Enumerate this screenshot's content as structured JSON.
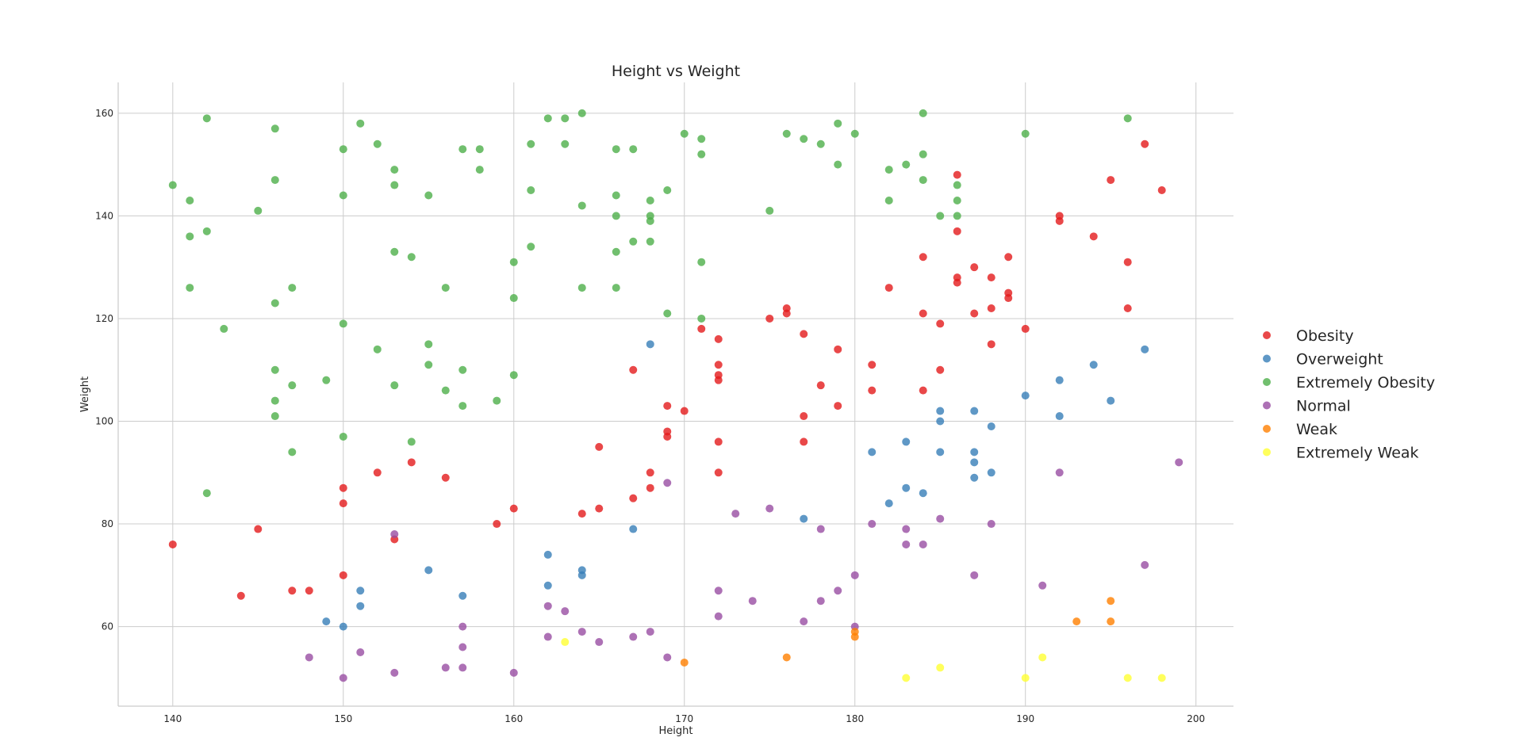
{
  "chart_data": {
    "type": "scatter",
    "title": "Height vs Weight",
    "xlabel": "Height",
    "ylabel": "Weight",
    "xlim": [
      136.8,
      202.2
    ],
    "ylim": [
      44.5,
      166
    ],
    "xticks": [
      140,
      150,
      160,
      170,
      180,
      190,
      200
    ],
    "yticks": [
      60,
      80,
      100,
      120,
      140,
      160
    ],
    "grid": true,
    "legend_position": "right",
    "series": [
      {
        "name": "Obesity",
        "color": "#e41a1c",
        "points": [
          [
            140,
            76
          ],
          [
            144,
            66
          ],
          [
            145,
            79
          ],
          [
            147,
            67
          ],
          [
            148,
            67
          ],
          [
            150,
            70
          ],
          [
            150,
            84
          ],
          [
            150,
            87
          ],
          [
            152,
            90
          ],
          [
            153,
            77
          ],
          [
            154,
            92
          ],
          [
            156,
            89
          ],
          [
            159,
            80
          ],
          [
            160,
            83
          ],
          [
            164,
            82
          ],
          [
            165,
            83
          ],
          [
            165,
            95
          ],
          [
            167,
            85
          ],
          [
            167,
            110
          ],
          [
            168,
            87
          ],
          [
            168,
            90
          ],
          [
            169,
            97
          ],
          [
            169,
            98
          ],
          [
            169,
            103
          ],
          [
            170,
            102
          ],
          [
            171,
            118
          ],
          [
            172,
            90
          ],
          [
            172,
            96
          ],
          [
            172,
            108
          ],
          [
            172,
            109
          ],
          [
            172,
            111
          ],
          [
            172,
            116
          ],
          [
            175,
            120
          ],
          [
            176,
            121
          ],
          [
            176,
            122
          ],
          [
            177,
            96
          ],
          [
            177,
            101
          ],
          [
            177,
            117
          ],
          [
            178,
            107
          ],
          [
            179,
            103
          ],
          [
            179,
            114
          ],
          [
            181,
            106
          ],
          [
            181,
            111
          ],
          [
            182,
            126
          ],
          [
            184,
            106
          ],
          [
            184,
            121
          ],
          [
            184,
            132
          ],
          [
            185,
            110
          ],
          [
            185,
            119
          ],
          [
            186,
            127
          ],
          [
            186,
            128
          ],
          [
            186,
            137
          ],
          [
            186,
            148
          ],
          [
            187,
            121
          ],
          [
            187,
            130
          ],
          [
            188,
            115
          ],
          [
            188,
            122
          ],
          [
            188,
            128
          ],
          [
            189,
            124
          ],
          [
            189,
            125
          ],
          [
            189,
            132
          ],
          [
            190,
            118
          ],
          [
            192,
            139
          ],
          [
            192,
            140
          ],
          [
            194,
            136
          ],
          [
            195,
            147
          ],
          [
            196,
            122
          ],
          [
            196,
            131
          ],
          [
            197,
            154
          ],
          [
            198,
            145
          ]
        ]
      },
      {
        "name": "Overweight",
        "color": "#377eb8",
        "points": [
          [
            149,
            61
          ],
          [
            150,
            60
          ],
          [
            151,
            64
          ],
          [
            151,
            67
          ],
          [
            155,
            71
          ],
          [
            157,
            66
          ],
          [
            162,
            68
          ],
          [
            162,
            74
          ],
          [
            164,
            70
          ],
          [
            164,
            71
          ],
          [
            167,
            79
          ],
          [
            168,
            115
          ],
          [
            177,
            81
          ],
          [
            181,
            94
          ],
          [
            182,
            84
          ],
          [
            183,
            87
          ],
          [
            183,
            96
          ],
          [
            184,
            86
          ],
          [
            185,
            94
          ],
          [
            185,
            100
          ],
          [
            185,
            102
          ],
          [
            187,
            89
          ],
          [
            187,
            92
          ],
          [
            187,
            94
          ],
          [
            187,
            102
          ],
          [
            188,
            90
          ],
          [
            188,
            99
          ],
          [
            190,
            105
          ],
          [
            192,
            101
          ],
          [
            192,
            108
          ],
          [
            194,
            111
          ],
          [
            195,
            104
          ],
          [
            197,
            114
          ]
        ]
      },
      {
        "name": "Extremely Obesity",
        "color": "#4daf4a",
        "points": [
          [
            140,
            146
          ],
          [
            141,
            126
          ],
          [
            141,
            136
          ],
          [
            141,
            143
          ],
          [
            142,
            86
          ],
          [
            142,
            137
          ],
          [
            142,
            159
          ],
          [
            143,
            118
          ],
          [
            145,
            141
          ],
          [
            146,
            101
          ],
          [
            146,
            104
          ],
          [
            146,
            110
          ],
          [
            146,
            123
          ],
          [
            146,
            147
          ],
          [
            146,
            157
          ],
          [
            147,
            94
          ],
          [
            147,
            107
          ],
          [
            147,
            126
          ],
          [
            149,
            108
          ],
          [
            150,
            97
          ],
          [
            150,
            119
          ],
          [
            150,
            144
          ],
          [
            150,
            153
          ],
          [
            151,
            158
          ],
          [
            152,
            114
          ],
          [
            152,
            154
          ],
          [
            153,
            107
          ],
          [
            153,
            133
          ],
          [
            153,
            146
          ],
          [
            153,
            149
          ],
          [
            154,
            96
          ],
          [
            154,
            132
          ],
          [
            155,
            111
          ],
          [
            155,
            115
          ],
          [
            155,
            144
          ],
          [
            156,
            106
          ],
          [
            156,
            126
          ],
          [
            157,
            103
          ],
          [
            157,
            110
          ],
          [
            157,
            153
          ],
          [
            158,
            149
          ],
          [
            158,
            153
          ],
          [
            159,
            104
          ],
          [
            160,
            109
          ],
          [
            160,
            124
          ],
          [
            160,
            131
          ],
          [
            161,
            134
          ],
          [
            161,
            145
          ],
          [
            161,
            154
          ],
          [
            162,
            159
          ],
          [
            163,
            154
          ],
          [
            163,
            159
          ],
          [
            164,
            126
          ],
          [
            164,
            142
          ],
          [
            164,
            160
          ],
          [
            166,
            126
          ],
          [
            166,
            133
          ],
          [
            166,
            140
          ],
          [
            166,
            144
          ],
          [
            166,
            153
          ],
          [
            167,
            135
          ],
          [
            167,
            153
          ],
          [
            168,
            135
          ],
          [
            168,
            139
          ],
          [
            168,
            140
          ],
          [
            168,
            143
          ],
          [
            169,
            121
          ],
          [
            169,
            145
          ],
          [
            170,
            156
          ],
          [
            171,
            120
          ],
          [
            171,
            131
          ],
          [
            171,
            152
          ],
          [
            171,
            155
          ],
          [
            175,
            141
          ],
          [
            176,
            156
          ],
          [
            177,
            155
          ],
          [
            178,
            154
          ],
          [
            179,
            150
          ],
          [
            179,
            158
          ],
          [
            180,
            156
          ],
          [
            182,
            143
          ],
          [
            182,
            149
          ],
          [
            183,
            150
          ],
          [
            184,
            147
          ],
          [
            184,
            152
          ],
          [
            184,
            160
          ],
          [
            185,
            140
          ],
          [
            186,
            140
          ],
          [
            186,
            143
          ],
          [
            186,
            146
          ],
          [
            190,
            156
          ],
          [
            196,
            159
          ]
        ]
      },
      {
        "name": "Normal",
        "color": "#984ea3",
        "points": [
          [
            148,
            54
          ],
          [
            150,
            50
          ],
          [
            151,
            55
          ],
          [
            153,
            51
          ],
          [
            153,
            78
          ],
          [
            156,
            52
          ],
          [
            157,
            52
          ],
          [
            157,
            56
          ],
          [
            157,
            60
          ],
          [
            160,
            51
          ],
          [
            162,
            58
          ],
          [
            162,
            64
          ],
          [
            163,
            63
          ],
          [
            164,
            59
          ],
          [
            165,
            57
          ],
          [
            167,
            58
          ],
          [
            168,
            59
          ],
          [
            169,
            54
          ],
          [
            169,
            88
          ],
          [
            172,
            62
          ],
          [
            172,
            67
          ],
          [
            173,
            82
          ],
          [
            174,
            65
          ],
          [
            175,
            83
          ],
          [
            177,
            61
          ],
          [
            178,
            65
          ],
          [
            178,
            79
          ],
          [
            179,
            67
          ],
          [
            180,
            60
          ],
          [
            180,
            70
          ],
          [
            181,
            80
          ],
          [
            183,
            76
          ],
          [
            183,
            79
          ],
          [
            184,
            76
          ],
          [
            185,
            81
          ],
          [
            187,
            70
          ],
          [
            188,
            80
          ],
          [
            191,
            68
          ],
          [
            192,
            90
          ],
          [
            197,
            72
          ],
          [
            199,
            92
          ]
        ]
      },
      {
        "name": "Weak",
        "color": "#ff7f00",
        "points": [
          [
            170,
            53
          ],
          [
            176,
            54
          ],
          [
            180,
            58
          ],
          [
            180,
            59
          ],
          [
            193,
            61
          ],
          [
            195,
            61
          ],
          [
            195,
            65
          ]
        ]
      },
      {
        "name": "Extremely Weak",
        "color": "#ffff33",
        "points": [
          [
            163,
            57
          ],
          [
            183,
            50
          ],
          [
            185,
            52
          ],
          [
            190,
            50
          ],
          [
            191,
            54
          ],
          [
            196,
            50
          ],
          [
            198,
            50
          ]
        ]
      }
    ]
  }
}
